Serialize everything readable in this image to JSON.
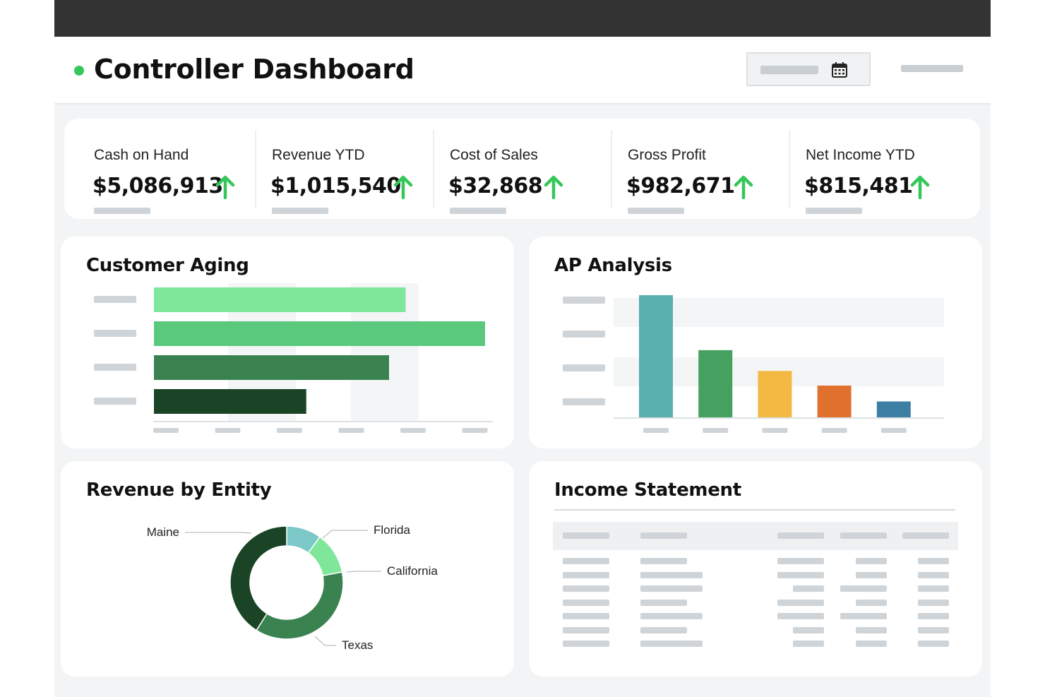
{
  "header": {
    "title": "Controller Dashboard"
  },
  "kpis": [
    {
      "label": "Cash on Hand",
      "value": "$5,086,913",
      "trend": "up"
    },
    {
      "label": "Revenue YTD",
      "value": "$1,015,540",
      "trend": "up"
    },
    {
      "label": "Cost of Sales",
      "value": "$32,868",
      "trend": "up"
    },
    {
      "label": "Gross Profit",
      "value": "$982,671",
      "trend": "up"
    },
    {
      "label": "Net Income YTD",
      "value": "$815,481",
      "trend": "up"
    }
  ],
  "colors": {
    "accent": "#35c759",
    "topbar": "#333333",
    "background": "#f3f4f5",
    "card": "#ffffff",
    "placeholder": "#cfd4d8"
  },
  "icons": {
    "date_picker": "calendar-icon",
    "kpi_trend": "arrow-up-icon"
  },
  "customer_aging": {
    "title": "Customer Aging"
  },
  "ap_analysis": {
    "title": "AP Analysis"
  },
  "revenue_by_entity": {
    "title": "Revenue by Entity"
  },
  "income_statement": {
    "title": "Income Statement"
  },
  "chart_data": [
    {
      "type": "bar",
      "orientation": "horizontal",
      "title": "Customer Aging",
      "categories": [
        "",
        "",
        "",
        ""
      ],
      "values": [
        76,
        100,
        71,
        46
      ],
      "colors": [
        "#7ee79a",
        "#5bc97d",
        "#3a8250",
        "#1a4425"
      ],
      "xlim": [
        0,
        100
      ],
      "grid": true
    },
    {
      "type": "bar",
      "orientation": "vertical",
      "title": "AP Analysis",
      "categories": [
        "",
        "",
        "",
        "",
        ""
      ],
      "values": [
        100,
        55,
        38,
        26,
        13
      ],
      "colors": [
        "#5aafaf",
        "#46a060",
        "#f4b942",
        "#e0702e",
        "#3d7fa4"
      ],
      "ylim": [
        0,
        100
      ],
      "grid": true
    },
    {
      "type": "pie",
      "style": "donut",
      "title": "Revenue by Entity",
      "labels": [
        "Florida",
        "California",
        "Texas",
        "Maine"
      ],
      "values": [
        10,
        12,
        37,
        41
      ],
      "colors": [
        "#7cc7c7",
        "#7ee79a",
        "#3a8250",
        "#1a4425"
      ]
    }
  ]
}
